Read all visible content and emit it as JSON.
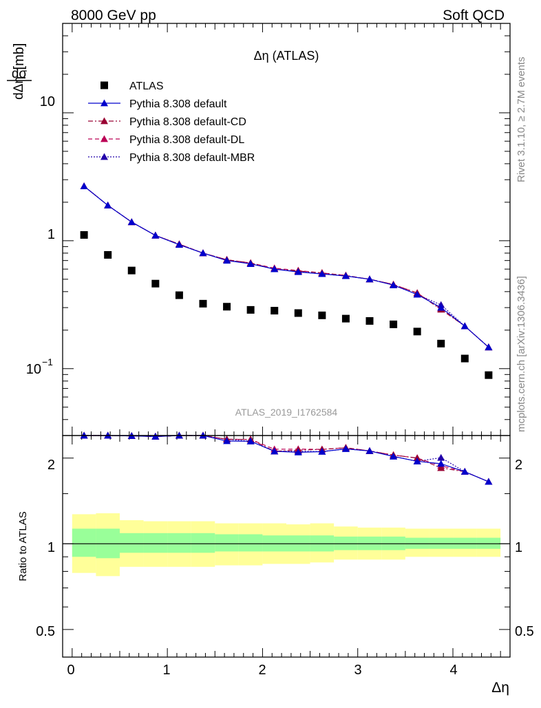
{
  "header": {
    "left": "8000 GeV pp",
    "right": "Soft QCD"
  },
  "side_labels": {
    "rivet": "Rivet 3.1.10, ≥ 2.7M events",
    "mcplots": "mcplots.cern.ch [arXiv:1306.3436]"
  },
  "colors": {
    "data": "#000000",
    "default": "#0000cc",
    "cd": "#990033",
    "dl": "#bb0055",
    "mbr": "#2200aa",
    "band_outer": "#ffff99",
    "band_inner": "#99ff99"
  },
  "chart_data": {
    "type": "line",
    "title": "Δη (ATLAS)",
    "watermark": "ATLAS_2019_I1762584",
    "xlabel": "Δη",
    "ylabel": {
      "main": "dσ",
      "den": "dΔη",
      "unit": "[mb]"
    },
    "ratio_ylabel": "Ratio to ATLAS",
    "xlim": [
      -0.1,
      4.6
    ],
    "ylim": [
      0.03,
      50
    ],
    "yscale": "log",
    "ratio_ylim": [
      0.4,
      2.4
    ],
    "ratio_yscale": "log",
    "x_ticks": [
      "0",
      "1",
      "2",
      "3",
      "4"
    ],
    "y_ticks": {
      "ten": "10",
      "one": "1",
      "tenth_base": "10",
      "tenth_exp": "−1"
    },
    "ratio_ticks": [
      "2",
      "1",
      "0.5"
    ],
    "x_edges": [
      0,
      0.25,
      0.5,
      0.75,
      1.0,
      1.25,
      1.5,
      1.75,
      2.0,
      2.25,
      2.5,
      2.75,
      3.0,
      3.25,
      3.5,
      3.75,
      4.0,
      4.25,
      4.5
    ],
    "x": [
      0.125,
      0.375,
      0.625,
      0.875,
      1.125,
      1.375,
      1.625,
      1.875,
      2.125,
      2.375,
      2.625,
      2.875,
      3.125,
      3.375,
      3.625,
      3.875,
      4.125,
      4.375
    ],
    "data": {
      "name": "ATLAS",
      "values": [
        1.11,
        0.775,
        0.585,
        0.462,
        0.375,
        0.322,
        0.305,
        0.288,
        0.284,
        0.272,
        0.261,
        0.246,
        0.236,
        0.222,
        0.195,
        0.157,
        0.12,
        0.089
      ]
    },
    "ratio_band_outer": [
      [
        0.79,
        1.27
      ],
      [
        0.77,
        1.28
      ],
      [
        0.83,
        1.21
      ],
      [
        0.83,
        1.2
      ],
      [
        0.83,
        1.2
      ],
      [
        0.83,
        1.2
      ],
      [
        0.84,
        1.18
      ],
      [
        0.84,
        1.18
      ],
      [
        0.85,
        1.18
      ],
      [
        0.85,
        1.17
      ],
      [
        0.86,
        1.18
      ],
      [
        0.88,
        1.15
      ],
      [
        0.88,
        1.14
      ],
      [
        0.88,
        1.14
      ],
      [
        0.9,
        1.13
      ],
      [
        0.9,
        1.13
      ],
      [
        0.9,
        1.13
      ],
      [
        0.9,
        1.13
      ]
    ],
    "ratio_band_inner": [
      [
        0.9,
        1.13
      ],
      [
        0.89,
        1.13
      ],
      [
        0.93,
        1.09
      ],
      [
        0.93,
        1.09
      ],
      [
        0.93,
        1.09
      ],
      [
        0.93,
        1.09
      ],
      [
        0.94,
        1.08
      ],
      [
        0.94,
        1.08
      ],
      [
        0.94,
        1.07
      ],
      [
        0.94,
        1.07
      ],
      [
        0.94,
        1.07
      ],
      [
        0.95,
        1.06
      ],
      [
        0.95,
        1.06
      ],
      [
        0.95,
        1.06
      ],
      [
        0.96,
        1.05
      ],
      [
        0.96,
        1.05
      ],
      [
        0.96,
        1.05
      ],
      [
        0.96,
        1.05
      ]
    ],
    "series": [
      {
        "name": "Pythia 8.308 default",
        "key": "default",
        "dash": "",
        "values": [
          2.67,
          1.89,
          1.4,
          1.1,
          0.93,
          0.8,
          0.7,
          0.66,
          0.6,
          0.57,
          0.55,
          0.53,
          0.5,
          0.45,
          0.38,
          0.3,
          0.215,
          0.147
        ]
      },
      {
        "name": "Pythia 8.308 default-CD",
        "key": "cd",
        "dash": "7,3,2,3",
        "values": [
          2.67,
          1.89,
          1.4,
          1.1,
          0.94,
          0.8,
          0.71,
          0.67,
          0.6,
          0.58,
          0.56,
          0.535,
          0.5,
          0.455,
          0.39,
          0.29,
          0.215,
          0.147
        ]
      },
      {
        "name": "Pythia 8.308 default-DL",
        "key": "dl",
        "dash": "6,4",
        "values": [
          2.67,
          1.89,
          1.4,
          1.1,
          0.94,
          0.8,
          0.71,
          0.67,
          0.61,
          0.585,
          0.56,
          0.535,
          0.5,
          0.455,
          0.39,
          0.295,
          0.215,
          0.147
        ]
      },
      {
        "name": "Pythia 8.308 default-MBR",
        "key": "mbr",
        "dash": "2,2",
        "values": [
          2.67,
          1.89,
          1.4,
          1.1,
          0.94,
          0.8,
          0.71,
          0.66,
          0.6,
          0.575,
          0.55,
          0.53,
          0.5,
          0.45,
          0.38,
          0.315,
          0.215,
          0.147
        ]
      }
    ]
  }
}
